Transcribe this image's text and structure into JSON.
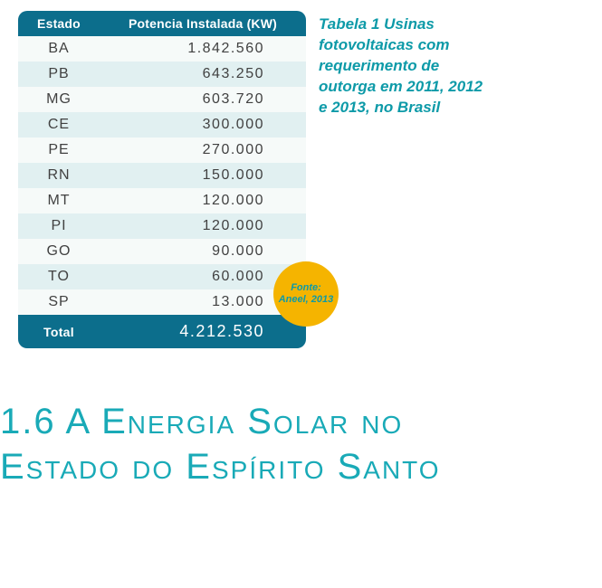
{
  "table": {
    "columns": [
      "Estado",
      "Potencia Instalada (KW)"
    ],
    "rows": [
      [
        "BA",
        "1.842.560"
      ],
      [
        "PB",
        "643.250"
      ],
      [
        "MG",
        "603.720"
      ],
      [
        "CE",
        "300.000"
      ],
      [
        "PE",
        "270.000"
      ],
      [
        "RN",
        "150.000"
      ],
      [
        "MT",
        "120.000"
      ],
      [
        "PI",
        "120.000"
      ],
      [
        "GO",
        "90.000"
      ],
      [
        "TO",
        "60.000"
      ],
      [
        "SP",
        "13.000"
      ]
    ],
    "total_label": "Total",
    "total_value": "4.212.530",
    "header_bg": "#0c6e8c",
    "header_color": "#ffffff",
    "row_odd_bg": "#f6faf9",
    "row_even_bg": "#e1f0f1",
    "cell_color": "#414141"
  },
  "caption": {
    "text": "Tabela 1 Usinas fotovoltaicas com requerimento de outorga em 2011, 2012 e 2013, no Brasil",
    "color": "#0d9aa8"
  },
  "badge": {
    "line1": "Fonte:",
    "line2": "Aneel, 2013",
    "bg": "#f5b400",
    "color": "#0d9aa8"
  },
  "heading": {
    "line1": "1.6 A Energia Solar no",
    "line2": "Estado do Espírito Santo",
    "color": "#19aab7"
  }
}
